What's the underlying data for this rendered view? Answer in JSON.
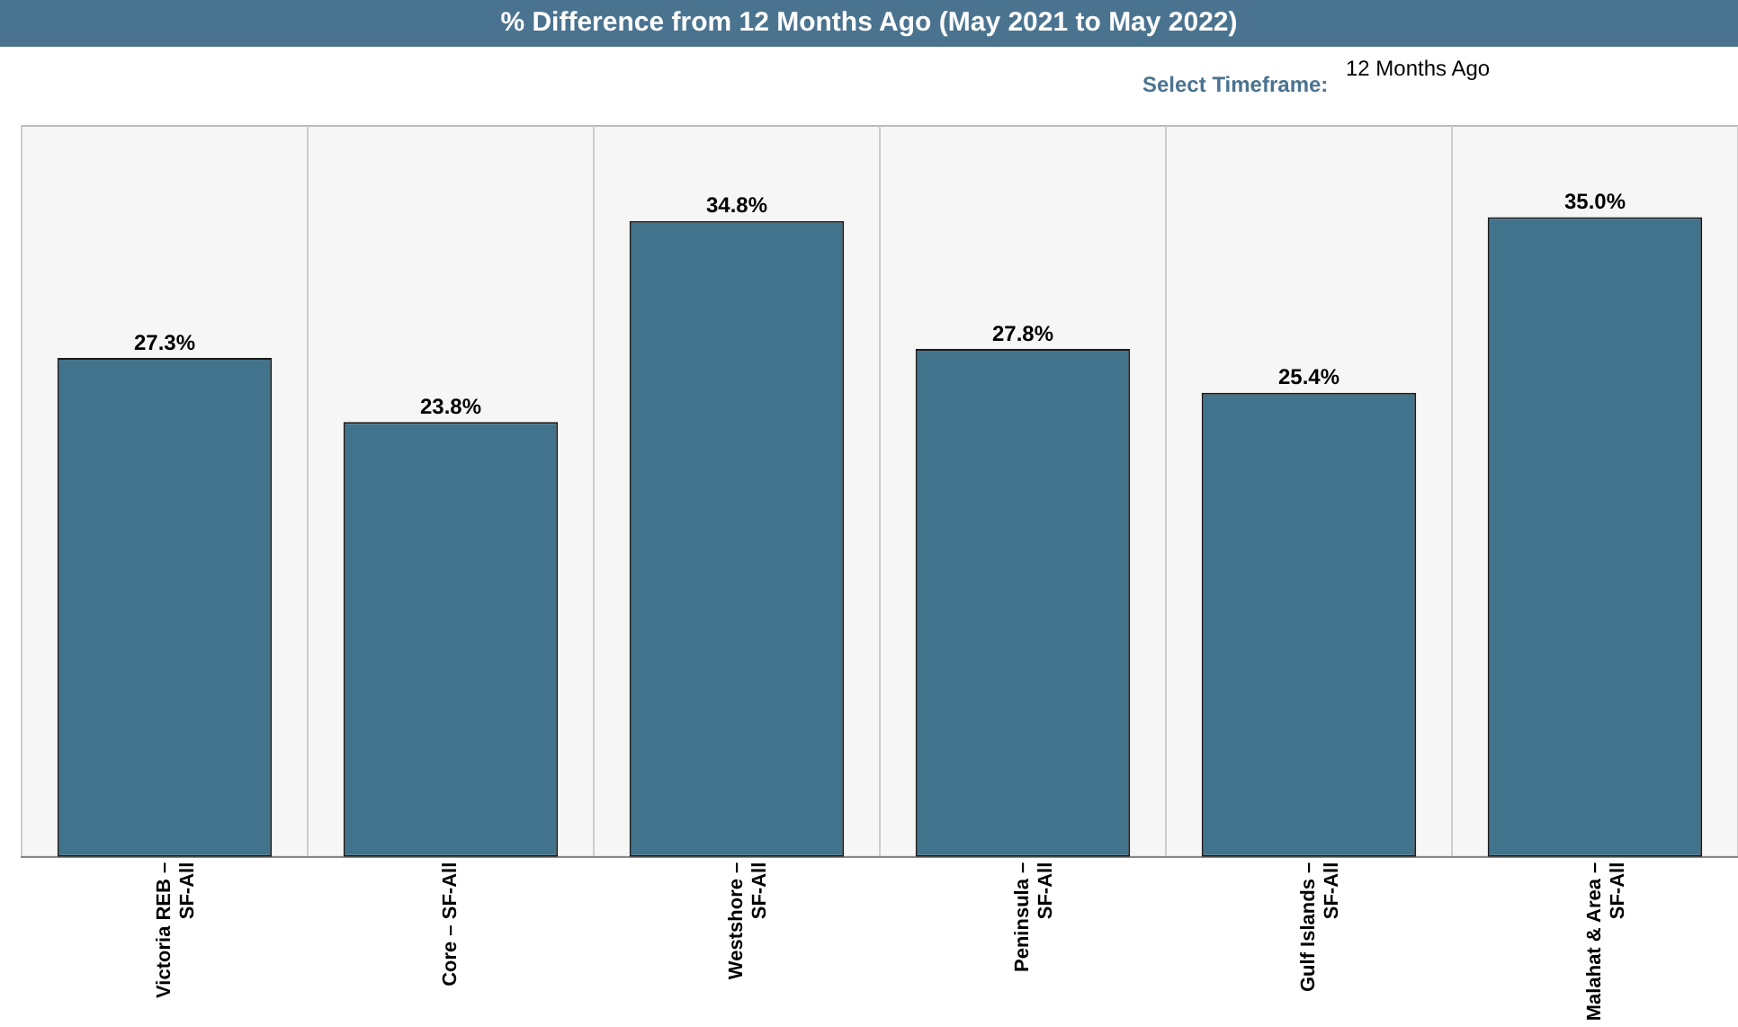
{
  "chart_data": {
    "type": "bar",
    "title": "% Difference from 12 Months Ago (May 2021 to May 2022)",
    "annotations": [
      "Select Timeframe:",
      "12 Months Ago"
    ],
    "categories": [
      "Victoria REB – SF-All",
      "Core – SF-All",
      "Westshore – SF-All",
      "Peninsula – SF-All",
      "Gulf Islands – SF-All",
      "Malahat & Area – SF-All"
    ],
    "values": [
      27.3,
      23.8,
      34.8,
      27.8,
      25.4,
      35.0
    ],
    "value_labels": [
      "27.3%",
      "23.8%",
      "34.8%",
      "27.8%",
      "25.4%",
      "35.0%"
    ],
    "color": "#41738d",
    "grid": "x",
    "legend": false
  }
}
